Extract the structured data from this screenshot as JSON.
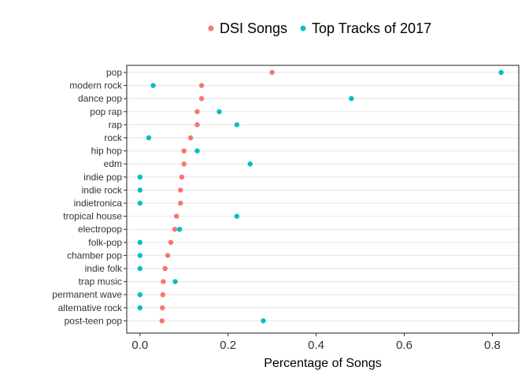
{
  "chart_data": {
    "type": "scatter",
    "orientation": "horizontal-dot",
    "xlabel": "Percentage of Songs",
    "ylabel": "",
    "xlim": [
      -0.03,
      0.86
    ],
    "xticks": [
      0.0,
      0.2,
      0.4,
      0.6,
      0.8
    ],
    "xtick_labels": [
      "0.0",
      "0.2",
      "0.4",
      "0.6",
      "0.8"
    ],
    "grid": "horizontal-major",
    "legend_position": "top",
    "categories": [
      "pop",
      "modern rock",
      "dance pop",
      "pop rap",
      "rap",
      "rock",
      "hip hop",
      "edm",
      "indie pop",
      "indie rock",
      "indietronica",
      "tropical house",
      "electropop",
      "folk-pop",
      "chamber pop",
      "indie folk",
      "trap music",
      "permanent wave",
      "alternative rock",
      "post-teen pop"
    ],
    "series": [
      {
        "name": "DSI Songs",
        "color": "#F8766D",
        "values": [
          0.3,
          0.14,
          0.14,
          0.13,
          0.13,
          0.115,
          0.1,
          0.1,
          0.095,
          0.092,
          0.092,
          0.083,
          0.079,
          0.07,
          0.063,
          0.057,
          0.053,
          0.052,
          0.051,
          0.05
        ]
      },
      {
        "name": "Top Tracks of 2017",
        "color": "#00BFC4",
        "values": [
          0.82,
          0.03,
          0.48,
          0.18,
          0.22,
          0.02,
          0.13,
          0.25,
          0.0,
          0.0,
          0.0,
          0.22,
          0.09,
          0.0,
          0.0,
          0.0,
          0.08,
          0.0,
          0.0,
          0.28
        ]
      }
    ]
  }
}
